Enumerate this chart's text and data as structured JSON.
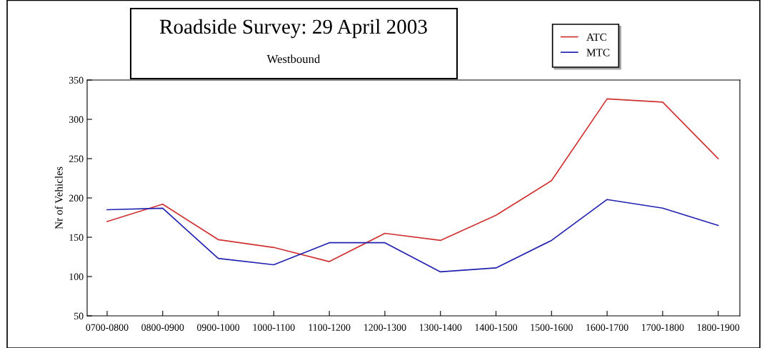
{
  "chart_data": {
    "type": "line",
    "title": "Roadside Survey: 29 April 2003",
    "subtitle": "Westbound",
    "ylabel": "Nr of Vehicles",
    "categories": [
      "0700-0800",
      "0800-0900",
      "0900-1000",
      "1000-1100",
      "1100-1200",
      "1200-1300",
      "1300-1400",
      "1400-1500",
      "1500-1600",
      "1600-1700",
      "1700-1800",
      "1800-1900"
    ],
    "series": [
      {
        "name": "ATC",
        "color": "#d03030",
        "values": [
          170,
          192,
          147,
          137,
          119,
          155,
          146,
          178,
          222,
          326,
          322,
          250
        ]
      },
      {
        "name": "MTC",
        "color": "#2020b0",
        "values": [
          185,
          187,
          123,
          115,
          143,
          143,
          106,
          111,
          146,
          198,
          187,
          165
        ]
      }
    ],
    "ylim": [
      50,
      350
    ],
    "yticks": [
      50,
      100,
      150,
      200,
      250,
      300,
      350
    ],
    "grid": false,
    "legend": "top right",
    "marker": "none",
    "line_style": "solid"
  }
}
